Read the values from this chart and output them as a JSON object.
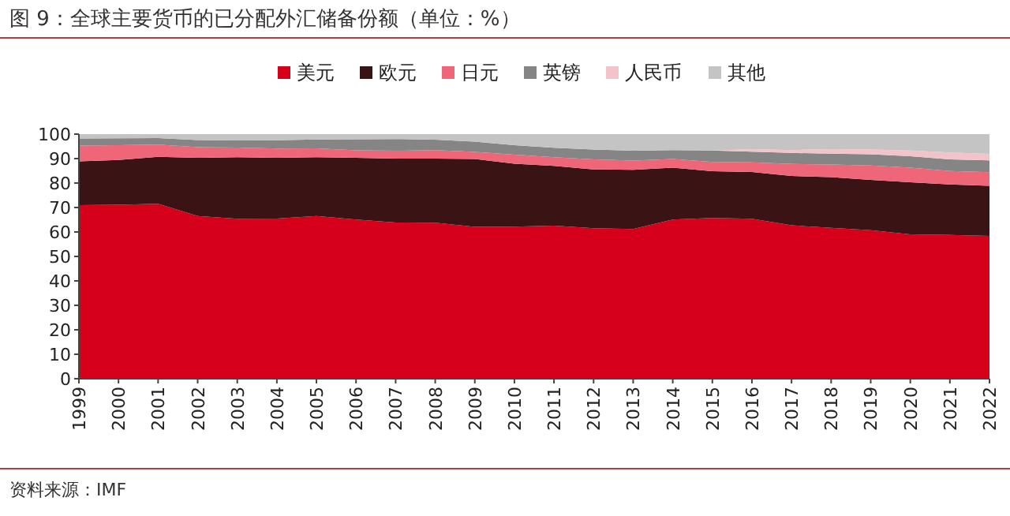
{
  "chart_data": {
    "type": "area",
    "stacked": true,
    "title": "图 9：全球主要货币的已分配外汇储备份额（单位：%）",
    "legend": "top",
    "grid": false,
    "categories": [
      "1999",
      "2000",
      "2001",
      "2002",
      "2003",
      "2004",
      "2005",
      "2006",
      "2007",
      "2008",
      "2009",
      "2010",
      "2011",
      "2012",
      "2013",
      "2014",
      "2015",
      "2016",
      "2017",
      "2018",
      "2019",
      "2020",
      "2021",
      "2022"
    ],
    "ylim": [
      0,
      100
    ],
    "yticks": [
      0,
      10,
      20,
      30,
      40,
      50,
      60,
      70,
      80,
      90,
      100
    ],
    "series": [
      {
        "name": "美元",
        "color": "#d7001a",
        "values": [
          71.0,
          71.1,
          71.5,
          66.5,
          65.4,
          65.5,
          66.5,
          65.1,
          63.9,
          63.8,
          62.1,
          62.2,
          62.6,
          61.5,
          61.2,
          65.1,
          65.7,
          65.4,
          62.7,
          61.7,
          60.7,
          59.0,
          58.8,
          58.4
        ]
      },
      {
        "name": "欧元",
        "color": "#3a1414",
        "values": [
          17.9,
          18.3,
          19.2,
          23.8,
          25.2,
          24.8,
          24.1,
          25.2,
          26.1,
          26.2,
          27.7,
          25.7,
          24.4,
          24.1,
          24.2,
          21.2,
          19.1,
          19.1,
          20.2,
          20.7,
          20.6,
          21.3,
          20.6,
          20.5
        ]
      },
      {
        "name": "日元",
        "color": "#ee6677",
        "values": [
          6.4,
          6.1,
          5.0,
          4.4,
          3.9,
          3.8,
          3.6,
          3.1,
          3.2,
          3.5,
          2.9,
          3.7,
          3.6,
          4.1,
          3.8,
          3.5,
          3.8,
          4.0,
          4.9,
          5.2,
          5.9,
          6.0,
          5.5,
          5.5
        ]
      },
      {
        "name": "英镑",
        "color": "#858585",
        "values": [
          2.9,
          2.8,
          2.7,
          2.9,
          2.9,
          3.4,
          3.6,
          4.5,
          4.8,
          4.2,
          4.2,
          3.9,
          3.8,
          4.0,
          4.0,
          3.7,
          4.7,
          4.3,
          4.5,
          4.4,
          4.6,
          4.7,
          4.8,
          4.9
        ]
      },
      {
        "name": "人民币",
        "color": "#f2c4ca",
        "values": [
          0,
          0,
          0,
          0,
          0,
          0,
          0,
          0,
          0,
          0,
          0,
          0,
          0,
          0,
          0,
          0,
          0,
          1.1,
          1.2,
          1.9,
          1.9,
          2.3,
          2.8,
          2.6
        ]
      },
      {
        "name": "其他",
        "color": "#c4c4c4",
        "values": [
          1.8,
          1.7,
          1.6,
          2.4,
          2.6,
          2.5,
          2.2,
          2.1,
          2.0,
          2.3,
          3.1,
          4.5,
          5.6,
          6.3,
          6.8,
          6.5,
          6.7,
          6.1,
          6.5,
          6.1,
          6.3,
          6.7,
          7.5,
          8.1
        ]
      }
    ],
    "annotations": [
      "资料来源：IMF"
    ]
  }
}
